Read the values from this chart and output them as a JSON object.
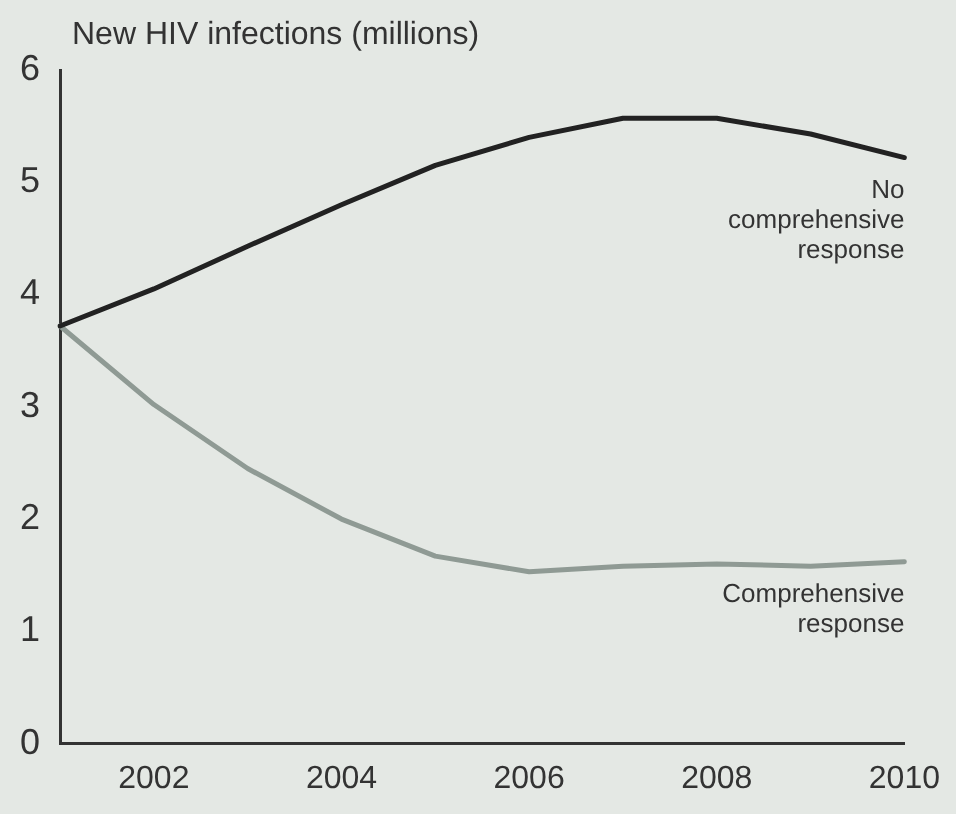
{
  "chart_data": {
    "type": "line",
    "ylabel": "New HIV infections (millions)",
    "categories": [
      null,
      "2002",
      null,
      "2004",
      null,
      "2006",
      null,
      "2008",
      null,
      "2010"
    ],
    "series": [
      {
        "name": "No comprehensive response",
        "color": "#222222",
        "values": [
          3.72,
          4.05,
          4.43,
          4.8,
          5.15,
          5.4,
          5.57,
          5.57,
          5.43,
          5.22
        ]
      },
      {
        "name": "Comprehensive response",
        "color": "#8f9a94",
        "values": [
          3.72,
          3.02,
          2.45,
          2.0,
          1.67,
          1.53,
          1.58,
          1.6,
          1.58,
          1.62
        ]
      }
    ],
    "ylim": [
      0,
      6
    ],
    "yticks": [
      0,
      1,
      2,
      3,
      4,
      5,
      6
    ],
    "grid": false,
    "legend": false,
    "marker": "none",
    "line_style": "solid"
  }
}
